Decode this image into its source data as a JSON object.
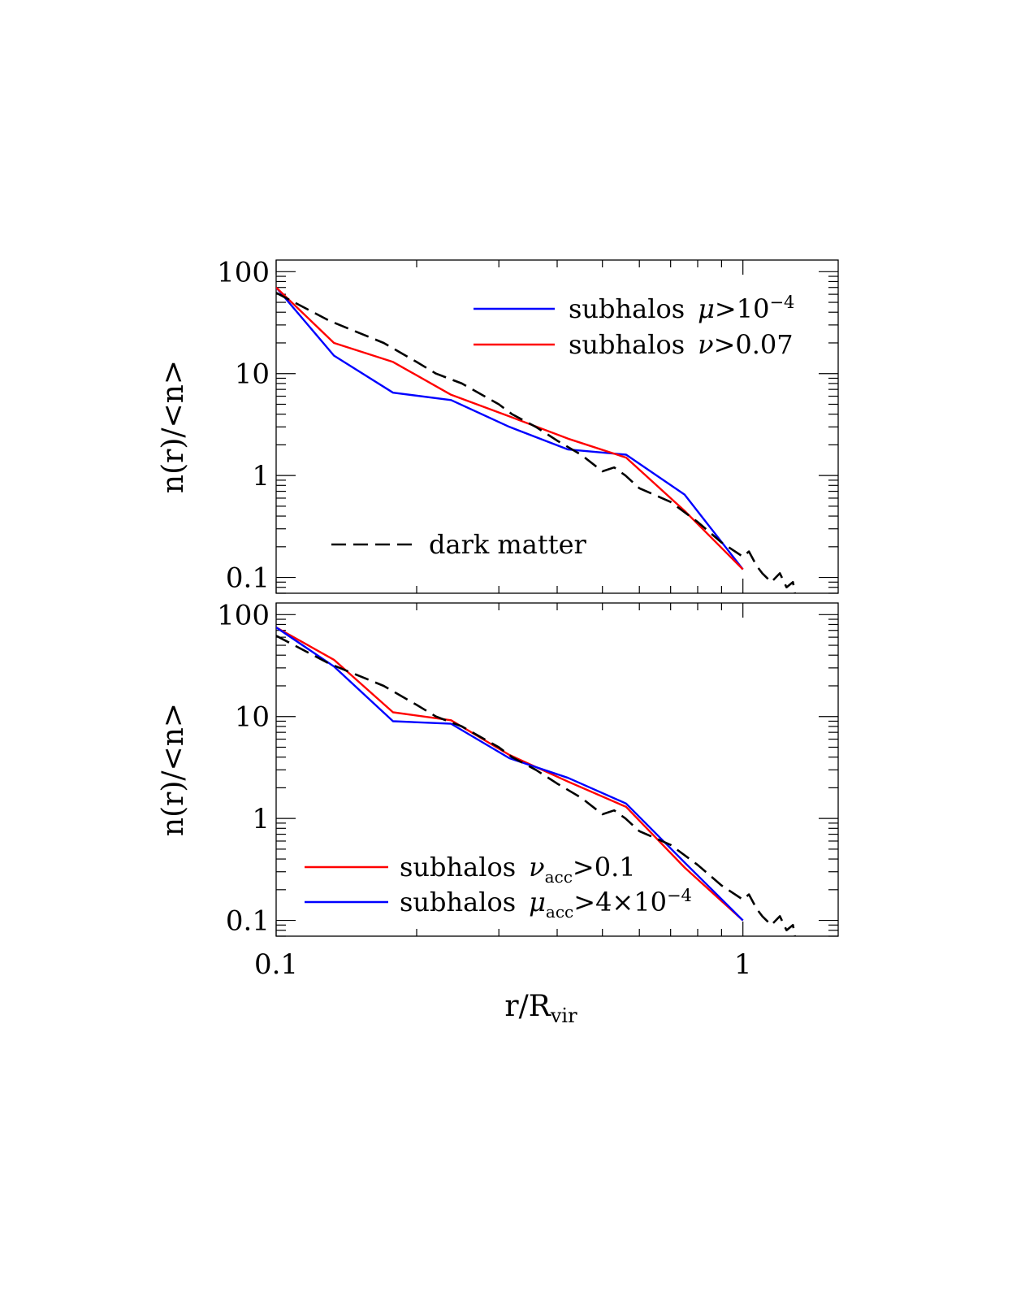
{
  "chart_data": [
    {
      "type": "line",
      "panel": "top",
      "ylabel": "n(r)/<n>",
      "xscale": "log",
      "yscale": "log",
      "xlim": [
        0.1,
        1.6
      ],
      "ylim": [
        0.07,
        130
      ],
      "yticks": [
        {
          "value": 100,
          "label": "100"
        },
        {
          "value": 10,
          "label": "10"
        },
        {
          "value": 1,
          "label": "1"
        },
        {
          "value": 0.1,
          "label": "0.1"
        }
      ],
      "legend": [
        {
          "series": 0,
          "label": "subhalos",
          "symbol": "μ",
          "op": ">10",
          "sup": "−4",
          "color": "#0000ff"
        },
        {
          "series": 1,
          "label": "subhalos",
          "symbol": "ν",
          "op": ">0.07",
          "color": "#ff0000"
        },
        {
          "series": 2,
          "label": "dark matter",
          "color": "#000000",
          "dashed": true
        }
      ],
      "series": [
        {
          "color": "#0000ff",
          "x": [
            0.1,
            0.133,
            0.178,
            0.237,
            0.316,
            0.422,
            0.562,
            0.75,
            1.0
          ],
          "y": [
            70,
            15,
            6.5,
            5.5,
            3.0,
            1.8,
            1.6,
            0.65,
            0.12
          ]
        },
        {
          "color": "#ff0000",
          "x": [
            0.1,
            0.133,
            0.178,
            0.237,
            0.316,
            0.422,
            0.562,
            0.75,
            1.0
          ],
          "y": [
            70,
            20,
            13,
            6.2,
            3.8,
            2.3,
            1.5,
            0.45,
            0.12
          ]
        },
        {
          "color": "#000000",
          "dashed": true,
          "x": [
            0.1,
            0.13,
            0.17,
            0.2,
            0.22,
            0.25,
            0.3,
            0.32,
            0.36,
            0.4,
            0.45,
            0.5,
            0.53,
            0.56,
            0.6,
            0.7,
            0.8,
            0.9,
            1.0,
            1.03,
            1.07,
            1.1,
            1.15,
            1.2,
            1.24,
            1.28,
            1.3
          ],
          "y": [
            62,
            33,
            20,
            13,
            10,
            8,
            5,
            4,
            3,
            2.2,
            1.6,
            1.1,
            1.2,
            1.0,
            0.75,
            0.55,
            0.35,
            0.22,
            0.16,
            0.18,
            0.13,
            0.11,
            0.09,
            0.11,
            0.08,
            0.09,
            0.06
          ]
        }
      ]
    },
    {
      "type": "line",
      "panel": "bottom",
      "ylabel": "n(r)/<n>",
      "xlabel": "r/R",
      "xlabel_sub": "vir",
      "xscale": "log",
      "yscale": "log",
      "xlim": [
        0.1,
        1.6
      ],
      "ylim": [
        0.07,
        130
      ],
      "xticks": [
        {
          "value": 0.1,
          "label": "0.1"
        },
        {
          "value": 1,
          "label": "1"
        }
      ],
      "yticks": [
        {
          "value": 100,
          "label": "100"
        },
        {
          "value": 10,
          "label": "10"
        },
        {
          "value": 1,
          "label": "1"
        },
        {
          "value": 0.1,
          "label": "0.1"
        }
      ],
      "legend": [
        {
          "series": 0,
          "label": "subhalos",
          "symbol": "ν",
          "sub": "acc",
          "op": ">0.1",
          "color": "#ff0000"
        },
        {
          "series": 1,
          "label": "subhalos",
          "symbol": "μ",
          "sub": "acc",
          "op": ">4×10",
          "sup": "−4",
          "color": "#0000ff"
        }
      ],
      "series": [
        {
          "color": "#ff0000",
          "x": [
            0.1,
            0.133,
            0.178,
            0.237,
            0.316,
            0.422,
            0.562,
            0.75,
            1.0
          ],
          "y": [
            75,
            36,
            11,
            9.2,
            4.2,
            2.3,
            1.3,
            0.33,
            0.1
          ]
        },
        {
          "color": "#0000ff",
          "x": [
            0.1,
            0.133,
            0.178,
            0.237,
            0.316,
            0.422,
            0.562,
            0.75,
            1.0
          ],
          "y": [
            75,
            31,
            9,
            8.5,
            3.9,
            2.5,
            1.4,
            0.37,
            0.1
          ]
        },
        {
          "color": "#000000",
          "dashed": true,
          "x": [
            0.1,
            0.13,
            0.17,
            0.2,
            0.22,
            0.25,
            0.3,
            0.32,
            0.36,
            0.4,
            0.45,
            0.5,
            0.53,
            0.56,
            0.6,
            0.7,
            0.8,
            0.9,
            1.0,
            1.03,
            1.07,
            1.1,
            1.15,
            1.2,
            1.24,
            1.28,
            1.3
          ],
          "y": [
            62,
            33,
            20,
            13,
            10,
            8,
            5,
            4,
            3,
            2.2,
            1.6,
            1.1,
            1.2,
            1.0,
            0.75,
            0.55,
            0.35,
            0.22,
            0.16,
            0.18,
            0.13,
            0.11,
            0.09,
            0.11,
            0.08,
            0.09,
            0.06
          ]
        }
      ]
    }
  ]
}
